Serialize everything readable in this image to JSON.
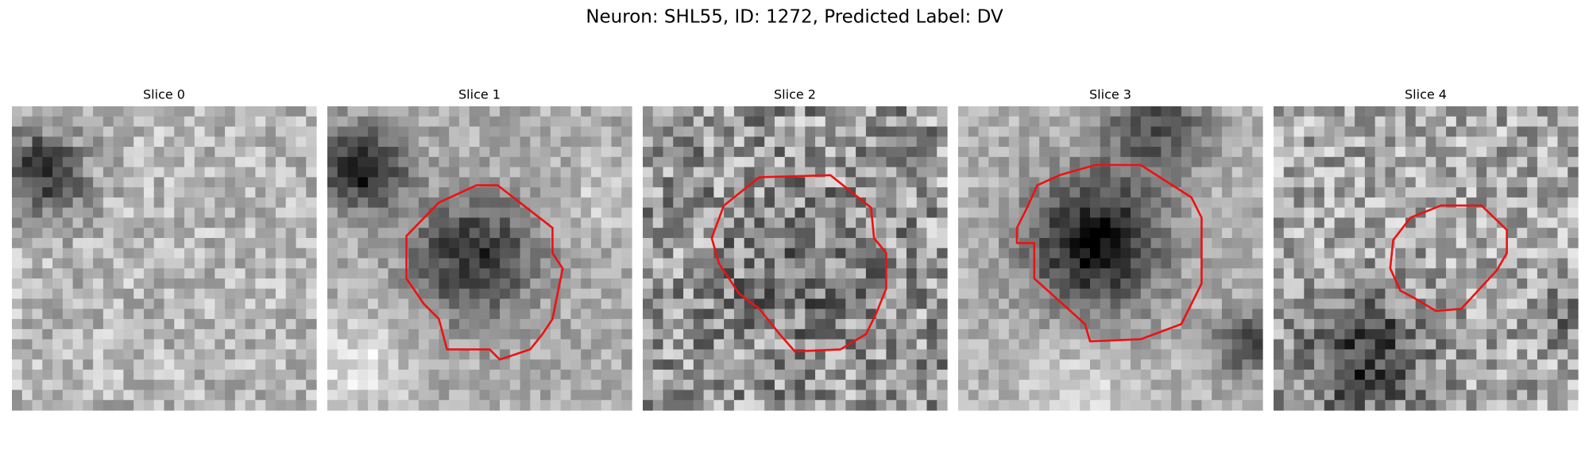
{
  "figure": {
    "title": "Neuron: SHL55, ID: 1272, Predicted Label: DV",
    "panels": [
      {
        "title": "Slice 0"
      },
      {
        "title": "Slice 1"
      },
      {
        "title": "Slice 2"
      },
      {
        "title": "Slice 3"
      },
      {
        "title": "Slice 4"
      }
    ]
  }
}
